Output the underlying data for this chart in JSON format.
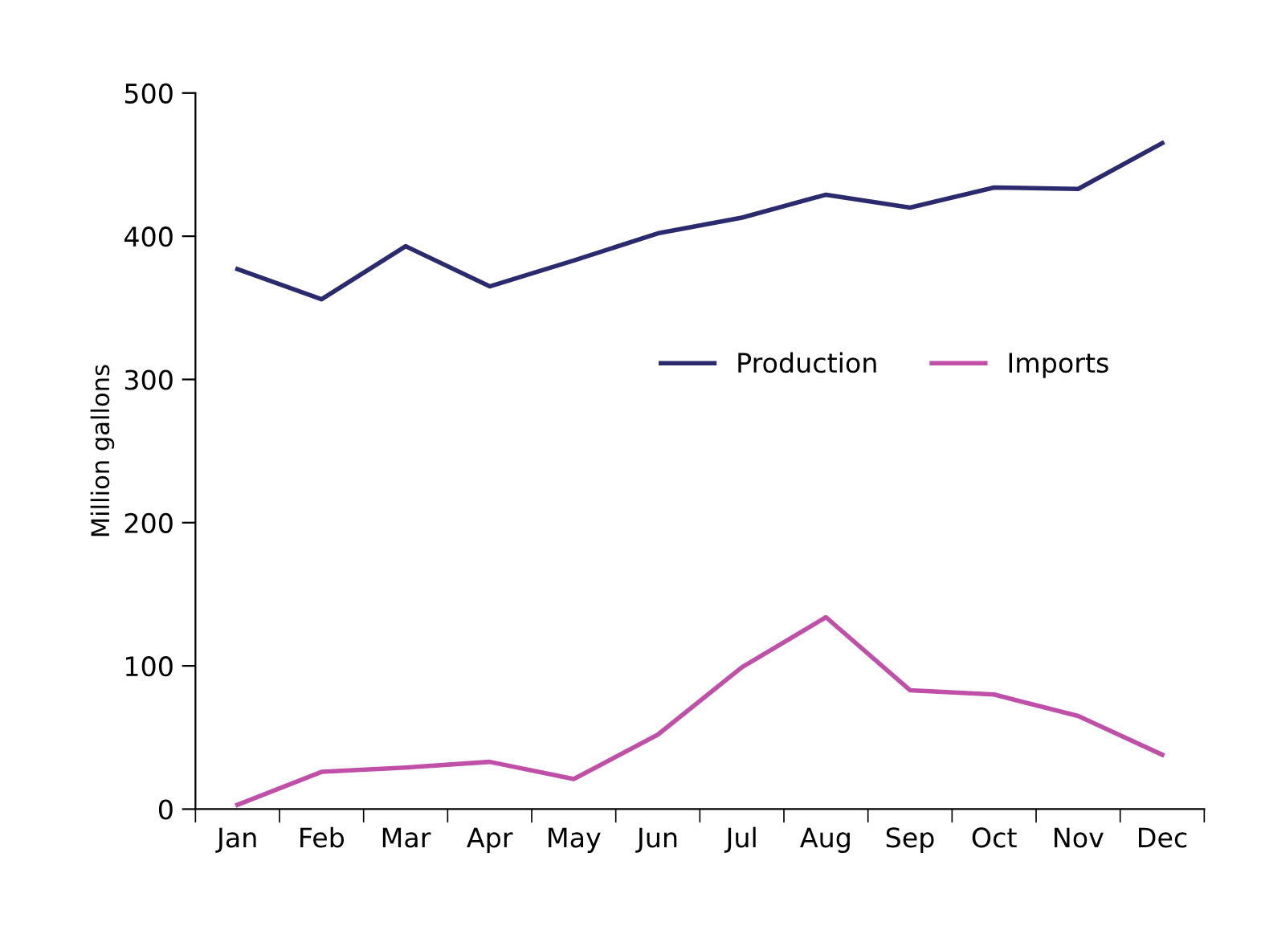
{
  "chart_data": {
    "type": "line",
    "ylabel": "Million gallons",
    "categories": [
      "Jan",
      "Feb",
      "Mar",
      "Apr",
      "May",
      "Jun",
      "Jul",
      "Aug",
      "Sep",
      "Oct",
      "Nov",
      "Dec"
    ],
    "series": [
      {
        "name": "Production",
        "color": "#2b2a6e",
        "values": [
          377,
          356,
          393,
          365,
          383,
          402,
          413,
          429,
          420,
          434,
          433,
          465
        ]
      },
      {
        "name": "Imports",
        "color": "#c04fa8",
        "values": [
          3,
          26,
          29,
          33,
          21,
          52,
          99,
          134,
          83,
          80,
          65,
          38
        ]
      }
    ],
    "ylim": [
      0,
      500
    ],
    "yticks": [
      0,
      100,
      200,
      300,
      400,
      500
    ],
    "grid": false,
    "legend": "right",
    "marker": "none",
    "line_style": "solid"
  }
}
